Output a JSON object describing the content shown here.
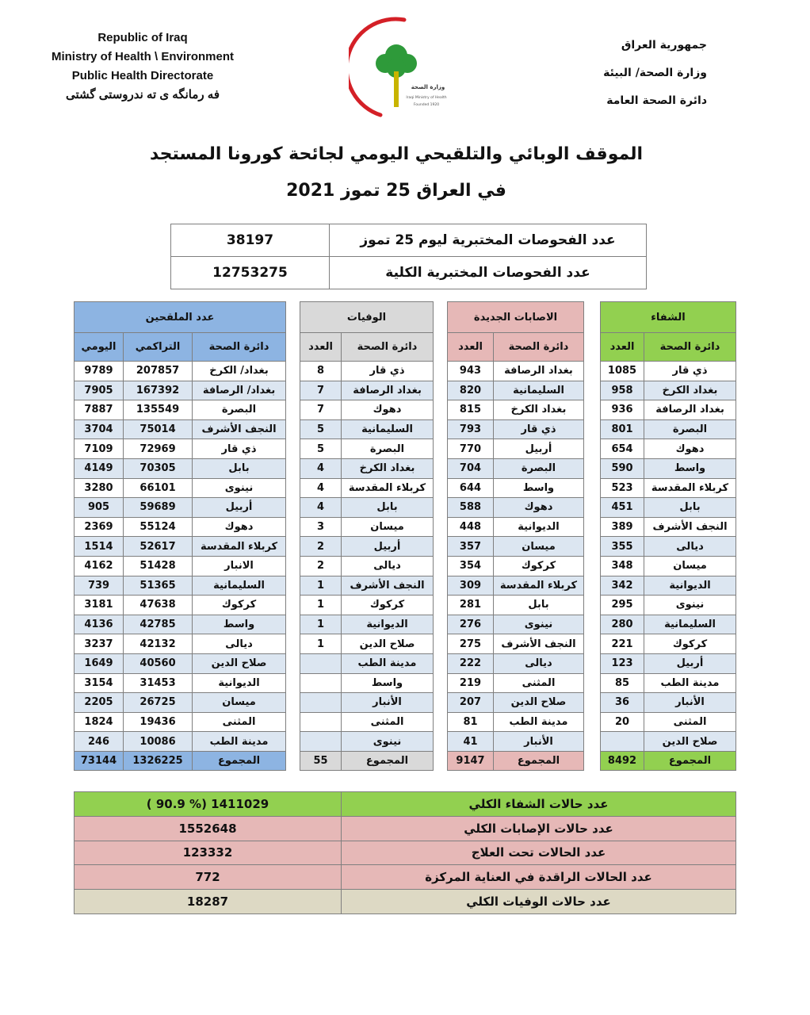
{
  "header": {
    "en_lines": [
      "Republic of Iraq",
      "Ministry of Health \\ Environment",
      "Public Health Directorate",
      "فه رمانگه ی ته ندروستی گشتی"
    ],
    "ar_lines": [
      "جمهورية العراق",
      "وزارة الصحة/ البيئة",
      "دائرة الصحة العامة"
    ],
    "logo_text": [
      "وزارة الصحة العراقية",
      "Iraqi Ministry of Health",
      "Founded 1920"
    ]
  },
  "title": {
    "line1": "الموقف الوبائي والتلقيحي اليومي لجائحة كورونا المستجد",
    "line2": "في العراق 25  تموز 2021"
  },
  "tests": [
    {
      "label": "عدد الفحوصات المختبرية  ليوم 25 تموز",
      "value": "38197"
    },
    {
      "label": "عدد الفحوصات المختبرية الكلية",
      "value": "12753275"
    }
  ],
  "colors": {
    "vaccinated": "#8db4e2",
    "deaths": "#d9d9d9",
    "cases": "#e6b8b7",
    "recovered": "#92d050",
    "stripe": "#dce6f1",
    "deaths_total": "#ddd9c4"
  },
  "recovered": {
    "title": "الشفاء",
    "columns": [
      "دائرة الصحة",
      "العدد"
    ],
    "rows": [
      [
        "ذي قار",
        "1085"
      ],
      [
        "بغداد الكرخ",
        "958"
      ],
      [
        "بغداد الرصافة",
        "936"
      ],
      [
        "البصرة",
        "801"
      ],
      [
        "دهوك",
        "654"
      ],
      [
        "واسط",
        "590"
      ],
      [
        "كربلاء المقدسة",
        "523"
      ],
      [
        "بابل",
        "451"
      ],
      [
        "النجف الأشرف",
        "389"
      ],
      [
        "ديالى",
        "355"
      ],
      [
        "ميسان",
        "348"
      ],
      [
        "الديوانية",
        "342"
      ],
      [
        "نينوى",
        "295"
      ],
      [
        "السليمانية",
        "280"
      ],
      [
        "كركوك",
        "221"
      ],
      [
        "أربيل",
        "123"
      ],
      [
        "مدينة الطب",
        "85"
      ],
      [
        "الأنبار",
        "36"
      ],
      [
        "المثنى",
        "20"
      ],
      [
        "صلاح الدين",
        ""
      ]
    ],
    "total": [
      "المجموع",
      "8492"
    ]
  },
  "cases": {
    "title": "الاصابات الجديدة",
    "columns": [
      "دائرة الصحة",
      "العدد"
    ],
    "rows": [
      [
        "بغداد الرصافة",
        "943"
      ],
      [
        "السليمانية",
        "820"
      ],
      [
        "بغداد الكرخ",
        "815"
      ],
      [
        "ذي قار",
        "793"
      ],
      [
        "أربيل",
        "770"
      ],
      [
        "البصرة",
        "704"
      ],
      [
        "واسط",
        "644"
      ],
      [
        "دهوك",
        "588"
      ],
      [
        "الديوانية",
        "448"
      ],
      [
        "ميسان",
        "357"
      ],
      [
        "كركوك",
        "354"
      ],
      [
        "كربلاء المقدسة",
        "309"
      ],
      [
        "بابل",
        "281"
      ],
      [
        "نينوى",
        "276"
      ],
      [
        "النجف الأشرف",
        "275"
      ],
      [
        "ديالى",
        "222"
      ],
      [
        "المثنى",
        "219"
      ],
      [
        "صلاح الدين",
        "207"
      ],
      [
        "مدينة الطب",
        "81"
      ],
      [
        "الأنبار",
        "41"
      ]
    ],
    "total": [
      "المجموع",
      "9147"
    ]
  },
  "deaths": {
    "title": "الوفيات",
    "columns": [
      "دائرة الصحة",
      "العدد"
    ],
    "rows": [
      [
        "ذي قار",
        "8"
      ],
      [
        "بغداد الرصافة",
        "7"
      ],
      [
        "دهوك",
        "7"
      ],
      [
        "السليمانية",
        "5"
      ],
      [
        "البصرة",
        "5"
      ],
      [
        "بغداد الكرخ",
        "4"
      ],
      [
        "كربلاء المقدسة",
        "4"
      ],
      [
        "بابل",
        "4"
      ],
      [
        "ميسان",
        "3"
      ],
      [
        "أربيل",
        "2"
      ],
      [
        "ديالى",
        "2"
      ],
      [
        "النجف الأشرف",
        "1"
      ],
      [
        "كركوك",
        "1"
      ],
      [
        "الديوانية",
        "1"
      ],
      [
        "صلاح الدين",
        "1"
      ],
      [
        "مدينة الطب",
        ""
      ],
      [
        "واسط",
        ""
      ],
      [
        "الأنبار",
        ""
      ],
      [
        "المثنى",
        ""
      ],
      [
        "نينوى",
        ""
      ]
    ],
    "total": [
      "المجموع",
      "55"
    ]
  },
  "vaccinated": {
    "title": "عدد الملقحين",
    "columns": [
      "دائرة الصحة",
      "التراكمي",
      "اليومي"
    ],
    "rows": [
      [
        "بغداد/ الكرخ",
        "207857",
        "9789"
      ],
      [
        "بغداد/ الرصافة",
        "167392",
        "7905"
      ],
      [
        "البصرة",
        "135549",
        "7887"
      ],
      [
        "النجف الأشرف",
        "75014",
        "3704"
      ],
      [
        "ذي قار",
        "72969",
        "7109"
      ],
      [
        "بابل",
        "70305",
        "4149"
      ],
      [
        "نينوى",
        "66101",
        "3280"
      ],
      [
        "أربيل",
        "59689",
        "905"
      ],
      [
        "دهوك",
        "55124",
        "2369"
      ],
      [
        "كربلاء المقدسة",
        "52617",
        "1514"
      ],
      [
        "الانبار",
        "51428",
        "4162"
      ],
      [
        "السليمانية",
        "51365",
        "739"
      ],
      [
        "كركوك",
        "47638",
        "3181"
      ],
      [
        "واسط",
        "42785",
        "4136"
      ],
      [
        "ديالى",
        "42132",
        "3237"
      ],
      [
        "صلاح الدين",
        "40560",
        "1649"
      ],
      [
        "الديوانية",
        "31453",
        "3154"
      ],
      [
        "ميسان",
        "26725",
        "2205"
      ],
      [
        "المثنى",
        "19436",
        "1824"
      ],
      [
        "مدينة الطب",
        "10086",
        "246"
      ]
    ],
    "total": [
      "المجموع",
      "1326225",
      "73144"
    ]
  },
  "summary": [
    {
      "label": "عدد حالات الشفاء الكلي",
      "value": "( 90.9 %)  1411029",
      "color": "#92d050"
    },
    {
      "label": "عدد حالات الإصابات الكلي",
      "value": "1552648",
      "color": "#e6b8b7"
    },
    {
      "label": "عدد الحالات تحت العلاج",
      "value": "123332",
      "color": "#e6b8b7"
    },
    {
      "label": "عدد الحالات الراقدة في العناية المركزة",
      "value": "772",
      "color": "#e6b8b7"
    },
    {
      "label": "عدد حالات الوفيات الكلي",
      "value": "18287",
      "color": "#ddd9c4"
    }
  ]
}
